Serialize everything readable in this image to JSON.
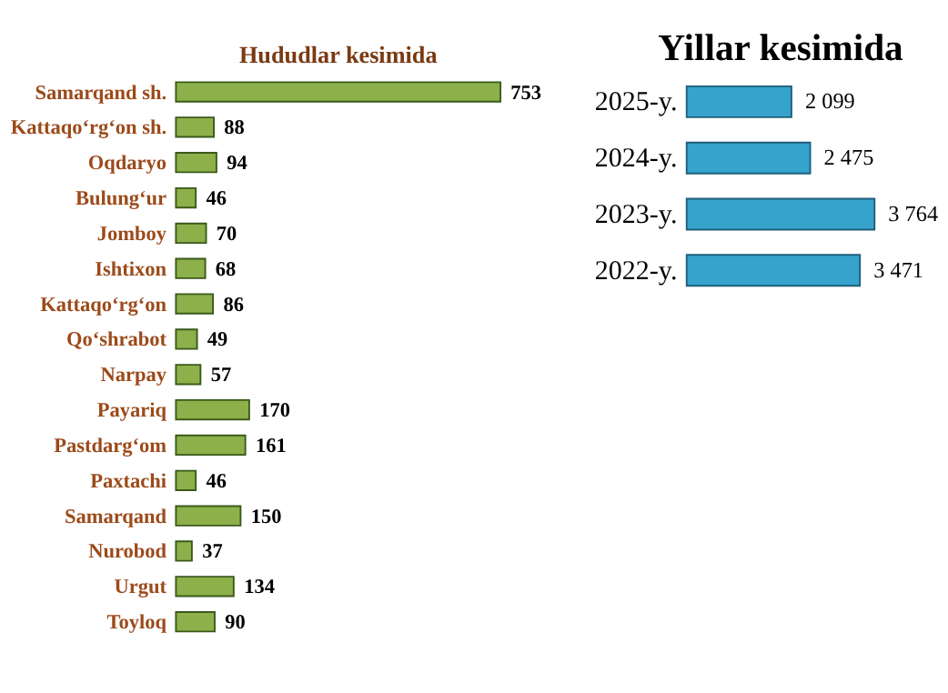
{
  "chart_data": [
    {
      "type": "bar",
      "orientation": "horizontal",
      "title": "Hududlar kesimida",
      "categories": [
        "Samarqand sh.",
        "Kattaqo‘rg‘on sh.",
        "Oqdaryo",
        "Bulung‘ur",
        "Jomboy",
        "Ishtixon",
        "Kattaqo‘rg‘on",
        "Qo‘shrabot",
        "Narpay",
        "Payariq",
        "Pastdarg‘om",
        "Paxtachi",
        "Samarqand",
        "Nurobod",
        "Urgut",
        "Toyloq"
      ],
      "values": [
        753,
        88,
        94,
        46,
        70,
        68,
        86,
        49,
        57,
        170,
        161,
        46,
        150,
        37,
        134,
        90
      ],
      "color": "#8db04a",
      "data_labels": true
    },
    {
      "type": "bar",
      "orientation": "horizontal",
      "title": "Yillar kesimida",
      "categories": [
        "2025-y.",
        "2024-y.",
        "2023-y.",
        "2022-y."
      ],
      "values": [
        2099,
        2475,
        3764,
        3471
      ],
      "color": "#35a3cc",
      "value_labels": [
        "2 099",
        "2 475",
        "3 764",
        "3 471"
      ]
    }
  ]
}
